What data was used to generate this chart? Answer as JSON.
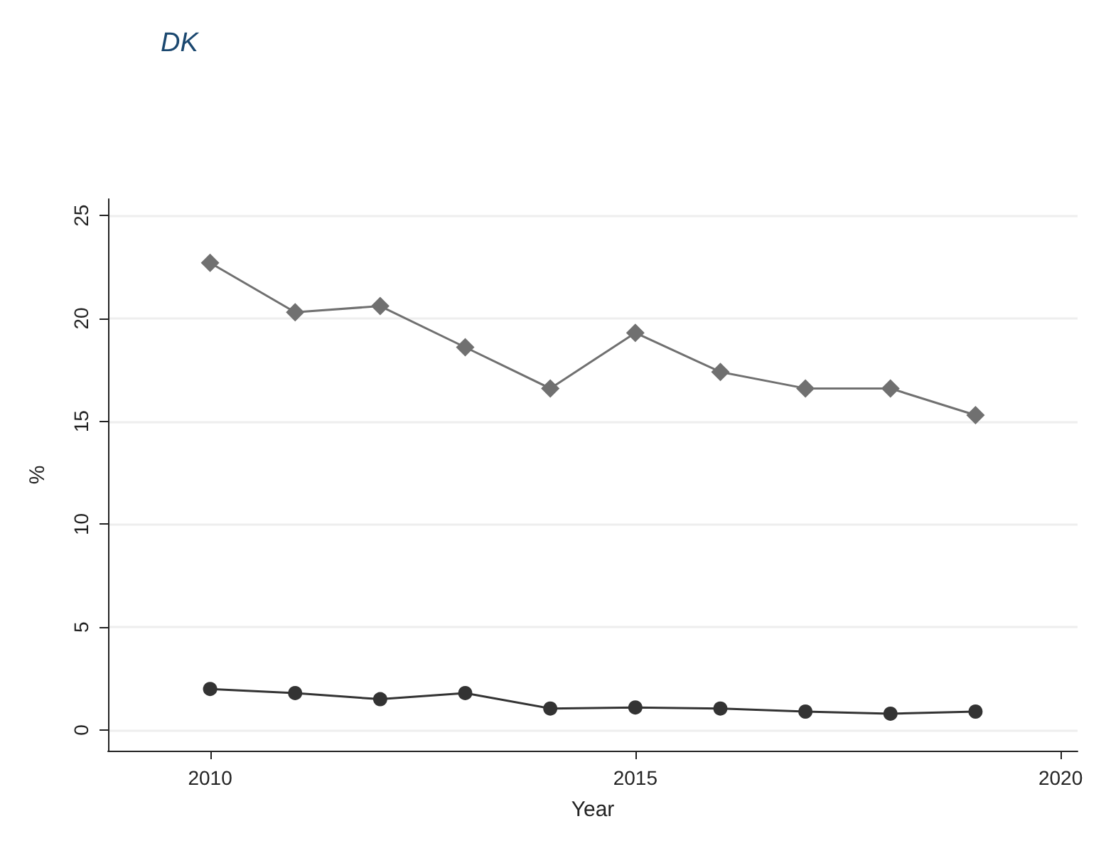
{
  "chart_data": {
    "type": "line",
    "title": "DK",
    "xlabel": "Year",
    "ylabel": "%",
    "x": [
      2010,
      2011,
      2012,
      2013,
      2014,
      2015,
      2016,
      2017,
      2018,
      2019
    ],
    "series": [
      {
        "color": "#707070",
        "marker": "diamond",
        "values": [
          22.7,
          20.3,
          20.6,
          18.6,
          16.6,
          19.3,
          17.4,
          16.6,
          16.6,
          15.3
        ]
      },
      {
        "color": "#333333",
        "marker": "circle",
        "values": [
          2.0,
          1.8,
          1.5,
          1.8,
          1.05,
          1.1,
          1.05,
          0.9,
          0.8,
          0.9
        ]
      }
    ],
    "xlim": [
      2008.8,
      2020.2
    ],
    "xticks": [
      2010,
      2015,
      2020
    ],
    "ylim": [
      -1,
      25.8
    ],
    "yticks": [
      0,
      5,
      10,
      15,
      20,
      25
    ],
    "grid": "y",
    "line_style": "solid"
  }
}
